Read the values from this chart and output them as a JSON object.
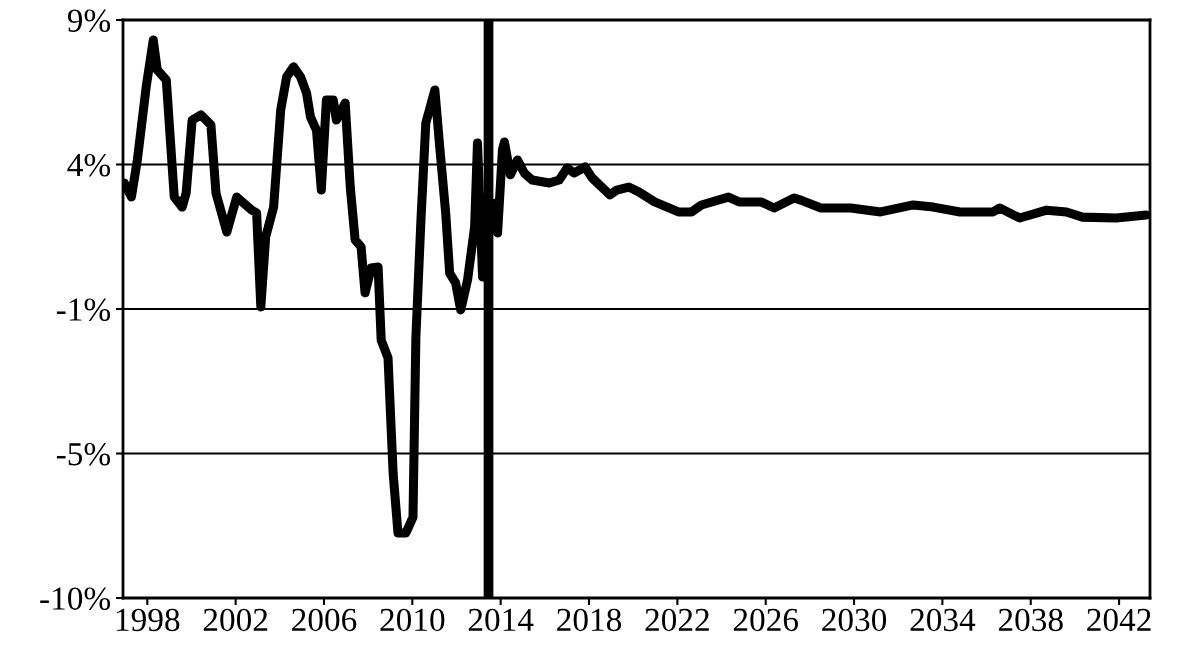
{
  "chart_data": {
    "type": "line",
    "grid": "y",
    "marker": "none",
    "line_style": "solid",
    "xlim": [
      1996.9,
      2043.4
    ],
    "xticks": [
      1998,
      2002,
      2006,
      2010,
      2014,
      2018,
      2022,
      2026,
      2030,
      2034,
      2038,
      2042
    ],
    "ylim": [
      -10,
      9
    ],
    "yticks": [
      {
        "value": 9,
        "label": "9%"
      },
      {
        "value": 4.25,
        "label": "4%"
      },
      {
        "value": -0.5,
        "label": "-1%"
      },
      {
        "value": -5.25,
        "label": "-5%"
      },
      {
        "value": -10,
        "label": "-10%"
      }
    ],
    "ref_lines": [
      {
        "axis": "x",
        "value": 2013.45,
        "color": "#000000"
      }
    ],
    "series": [
      {
        "color": "#000000",
        "x": [
          1996.96,
          1997.28,
          1997.55,
          1997.95,
          1998.27,
          1998.45,
          1998.86,
          1999.22,
          1999.58,
          1999.76,
          2000.03,
          2000.43,
          2000.88,
          2001.11,
          2001.6,
          2002.05,
          2002.73,
          2002.95,
          2003.14,
          2003.36,
          2003.72,
          2004.04,
          2004.31,
          2004.62,
          2004.94,
          2005.21,
          2005.39,
          2005.66,
          2005.88,
          2006.11,
          2006.42,
          2006.56,
          2006.96,
          2007.19,
          2007.41,
          2007.68,
          2007.86,
          2008.14,
          2008.45,
          2008.59,
          2008.9,
          2009.13,
          2009.35,
          2009.71,
          2010.03,
          2010.16,
          2010.39,
          2010.61,
          2011.02,
          2011.24,
          2011.51,
          2011.69,
          2011.96,
          2012.19,
          2012.5,
          2012.82,
          2012.95,
          2013.18,
          2013.41,
          2013.77,
          2013.86,
          2014.08,
          2014.17,
          2014.44,
          2014.76,
          2015.07,
          2015.43,
          2016.2,
          2016.65,
          2017.01,
          2017.32,
          2017.82,
          2018.14,
          2018.95,
          2019.26,
          2019.8,
          2020.25,
          2020.97,
          2022.05,
          2022.64,
          2023.09,
          2024.31,
          2024.8,
          2025.79,
          2026.38,
          2027.28,
          2027.59,
          2028.5,
          2029.85,
          2031.2,
          2032.68,
          2033.59,
          2034.8,
          2036.29,
          2036.6,
          2037.5,
          2038.72,
          2039.62,
          2040.34,
          2041.87,
          2043.23
        ],
        "values": [
          3.64,
          3.18,
          4.4,
          6.8,
          8.34,
          7.36,
          7.03,
          3.18,
          2.85,
          3.31,
          5.71,
          5.88,
          5.55,
          3.31,
          2.03,
          3.18,
          2.75,
          2.66,
          -0.43,
          1.87,
          2.85,
          6.04,
          7.13,
          7.46,
          7.13,
          6.6,
          5.81,
          5.38,
          3.41,
          6.37,
          6.37,
          5.71,
          6.27,
          3.51,
          1.77,
          1.54,
          0.03,
          0.85,
          0.88,
          -1.52,
          -2.11,
          -5.89,
          -7.86,
          -7.86,
          -7.34,
          -1.45,
          2.43,
          5.61,
          6.7,
          4.83,
          2.66,
          0.68,
          0.36,
          -0.53,
          0.45,
          2.2,
          4.96,
          0.55,
          2.85,
          2.98,
          2.0,
          4.73,
          4.99,
          3.91,
          4.4,
          3.97,
          3.74,
          3.64,
          3.74,
          4.14,
          3.97,
          4.17,
          3.81,
          3.25,
          3.41,
          3.51,
          3.35,
          3.02,
          2.69,
          2.69,
          2.92,
          3.18,
          3.02,
          3.02,
          2.82,
          3.15,
          3.08,
          2.82,
          2.82,
          2.69,
          2.92,
          2.85,
          2.69,
          2.69,
          2.82,
          2.49,
          2.75,
          2.69,
          2.52,
          2.49,
          2.59
        ]
      }
    ]
  }
}
